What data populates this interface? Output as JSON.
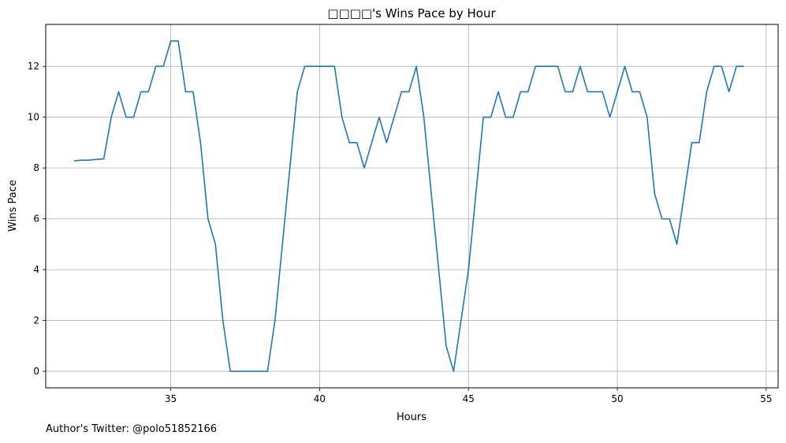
{
  "footer": {
    "note": "Author's Twitter: @polo51852166"
  },
  "chart_data": {
    "type": "line",
    "title": "□□□□'s Wins Pace by Hour",
    "xlabel": "Hours",
    "ylabel": "Wins Pace",
    "xlim": [
      30.8,
      55.4
    ],
    "ylim": [
      -0.65,
      13.65
    ],
    "xticks": [
      35,
      40,
      45,
      50,
      55
    ],
    "yticks": [
      0,
      2,
      4,
      6,
      8,
      10,
      12
    ],
    "grid": true,
    "color": "#1f77b4",
    "series": [
      {
        "x": [
          31.75,
          32.0,
          32.25,
          32.5,
          32.75,
          33.0,
          33.25,
          33.5,
          33.75,
          34.0,
          34.25,
          34.5,
          34.75,
          35.0,
          35.25,
          35.5,
          35.75,
          36.0,
          36.25,
          36.5,
          36.75,
          37.0,
          37.25,
          37.5,
          37.75,
          38.0,
          38.25,
          38.5,
          38.75,
          39.0,
          39.25,
          39.5,
          39.75,
          40.0,
          40.25,
          40.5,
          40.75,
          41.0,
          41.25,
          41.5,
          41.75,
          42.0,
          42.25,
          42.5,
          42.75,
          43.0,
          43.25,
          43.5,
          43.75,
          44.0,
          44.25,
          44.5,
          44.75,
          45.0,
          45.25,
          45.5,
          45.75,
          46.0,
          46.25,
          46.5,
          46.75,
          47.0,
          47.25,
          47.5,
          47.75,
          48.0,
          48.25,
          48.5,
          48.75,
          49.0,
          49.25,
          49.5,
          49.75,
          50.0,
          50.25,
          50.5,
          50.75,
          51.0,
          51.25,
          51.5,
          51.75,
          52.0,
          52.25,
          52.5,
          52.75,
          53.0,
          53.25,
          53.5,
          53.75,
          54.0,
          54.25
        ],
        "y": [
          8.28,
          8.31,
          8.31,
          8.34,
          8.36,
          10,
          11,
          10,
          10,
          11,
          11,
          12,
          12,
          13,
          13,
          11,
          11,
          9,
          6,
          5,
          2,
          0,
          0,
          0,
          0,
          0,
          0,
          2,
          5,
          8,
          11,
          12,
          12,
          12,
          12,
          12,
          10,
          9,
          9,
          8,
          9,
          10,
          9,
          10,
          11,
          11,
          12,
          10,
          7,
          4,
          1,
          0,
          2,
          4,
          7,
          10,
          10,
          11,
          10,
          10,
          11,
          11,
          12,
          12,
          12,
          12,
          11,
          11,
          12,
          11,
          11,
          11,
          10,
          11,
          12,
          11,
          11,
          10,
          7,
          6,
          6,
          5,
          7,
          9,
          9,
          11,
          12,
          12,
          11,
          12,
          12
        ]
      }
    ]
  }
}
